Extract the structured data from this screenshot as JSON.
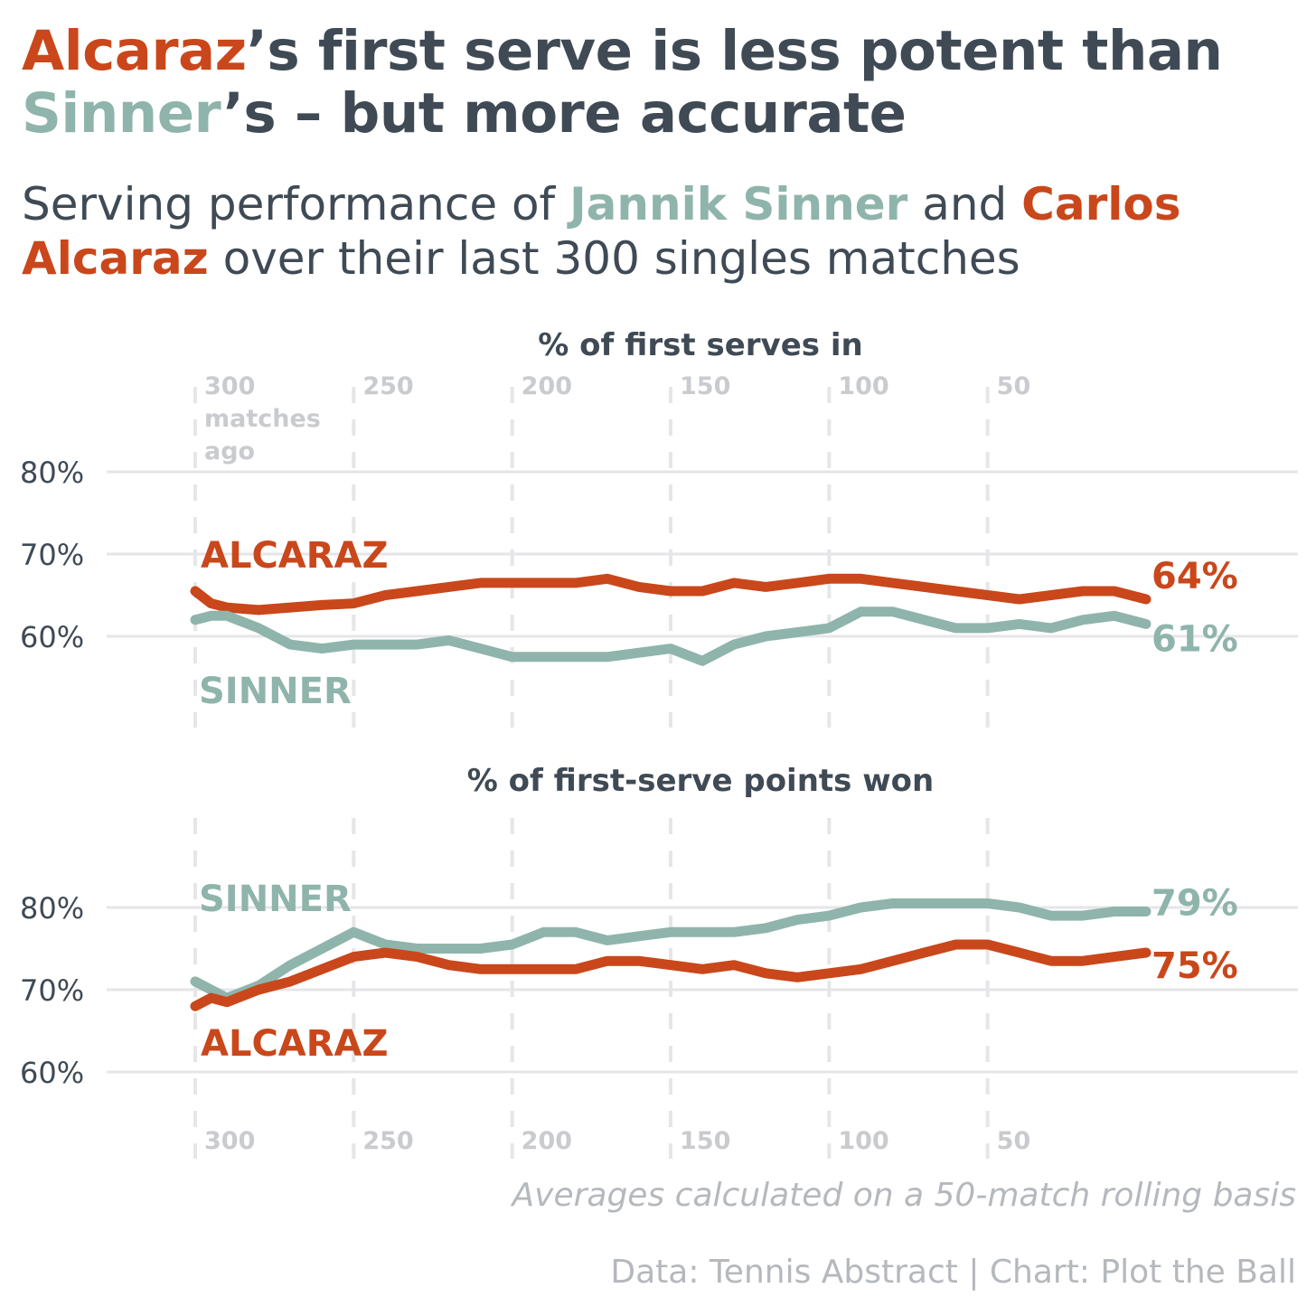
{
  "title": {
    "part1": "Alcaraz",
    "part2": "’s first serve is less potent than",
    "part3": "Sinner",
    "part4": "’s – but more accurate"
  },
  "subtitle": {
    "part1": "Serving performance of ",
    "part2": "Jannik Sinner",
    "part3": " and ",
    "part4": "Carlos Alcaraz",
    "part5": " over their last 300 singles matches"
  },
  "colors": {
    "alcaraz": "#c9471b",
    "sinner": "#8fb4ab",
    "text": "#3f4a55",
    "muted": "#b5b8bc",
    "grid": "#e6e6e8"
  },
  "x_ticks": [
    "300",
    "250",
    "200",
    "150",
    "100",
    "50"
  ],
  "x_first_tick_extra": [
    "matches",
    "ago"
  ],
  "note": "Averages calculated on a 50-match rolling basis",
  "source": "Data: Tennis Abstract | Chart: Plot the Ball",
  "chart_data": [
    {
      "type": "line",
      "title": "% of first serves in",
      "xlabel": "matches ago",
      "xlim": [
        300,
        0
      ],
      "ylim": [
        50,
        85
      ],
      "y_ticks": [
        "80%",
        "70%",
        "60%"
      ],
      "y_tick_values": [
        80,
        70,
        60
      ],
      "series": [
        {
          "name": "ALCARAZ",
          "color": "#c9471b",
          "end_label": "64%",
          "x": [
            300,
            295,
            290,
            280,
            270,
            260,
            250,
            240,
            230,
            220,
            210,
            200,
            190,
            180,
            170,
            160,
            150,
            140,
            130,
            120,
            110,
            100,
            90,
            80,
            70,
            60,
            50,
            40,
            30,
            20,
            10,
            0
          ],
          "y": [
            65.5,
            64,
            63.5,
            63.2,
            63.5,
            63.8,
            64,
            65,
            65.5,
            66,
            66.5,
            66.5,
            66.5,
            66.5,
            67,
            66,
            65.5,
            65.5,
            66.5,
            66,
            66.5,
            67,
            67,
            66.5,
            66,
            65.5,
            65,
            64.5,
            65,
            65.5,
            65.5,
            64.5
          ]
        },
        {
          "name": "SINNER",
          "color": "#8fb4ab",
          "end_label": "61%",
          "x": [
            300,
            295,
            290,
            280,
            270,
            260,
            250,
            240,
            230,
            220,
            210,
            200,
            190,
            180,
            170,
            160,
            150,
            140,
            130,
            120,
            110,
            100,
            90,
            80,
            70,
            60,
            50,
            40,
            30,
            20,
            10,
            0
          ],
          "y": [
            62,
            62.5,
            62.5,
            61,
            59,
            58.5,
            59,
            59,
            59,
            59.5,
            58.5,
            57.5,
            57.5,
            57.5,
            57.5,
            58,
            58.5,
            57,
            59,
            60,
            60.5,
            61,
            63,
            63,
            62,
            61,
            61,
            61.5,
            61,
            62,
            62.5,
            61.5
          ]
        }
      ]
    },
    {
      "type": "line",
      "title": "% of first-serve points won",
      "xlabel": "matches ago",
      "xlim": [
        300,
        0
      ],
      "ylim": [
        58,
        86
      ],
      "y_ticks": [
        "80%",
        "70%",
        "60%"
      ],
      "y_tick_values": [
        80,
        70,
        60
      ],
      "series": [
        {
          "name": "SINNER",
          "color": "#8fb4ab",
          "end_label": "79%",
          "x": [
            300,
            295,
            290,
            280,
            270,
            260,
            250,
            240,
            230,
            220,
            210,
            200,
            190,
            180,
            170,
            160,
            150,
            140,
            130,
            120,
            110,
            100,
            90,
            80,
            70,
            60,
            50,
            40,
            30,
            20,
            10,
            0
          ],
          "y": [
            71,
            70,
            69,
            70.5,
            73,
            75,
            77,
            75.5,
            75,
            75,
            75,
            75.5,
            77,
            77,
            76,
            76.5,
            77,
            77,
            77,
            77.5,
            78.5,
            79,
            80,
            80.5,
            80.5,
            80.5,
            80.5,
            80,
            79,
            79,
            79.5,
            79.5
          ]
        },
        {
          "name": "ALCARAZ",
          "color": "#c9471b",
          "end_label": "75%",
          "x": [
            300,
            295,
            290,
            280,
            270,
            260,
            250,
            240,
            230,
            220,
            210,
            200,
            190,
            180,
            170,
            160,
            150,
            140,
            130,
            120,
            110,
            100,
            90,
            80,
            70,
            60,
            50,
            40,
            30,
            20,
            10,
            0
          ],
          "y": [
            68,
            69,
            68.5,
            70,
            71,
            72.5,
            74,
            74.5,
            74,
            73,
            72.5,
            72.5,
            72.5,
            72.5,
            73.5,
            73.5,
            73,
            72.5,
            73,
            72,
            71.5,
            72,
            72.5,
            73.5,
            74.5,
            75.5,
            75.5,
            74.5,
            73.5,
            73.5,
            74,
            74.5
          ]
        }
      ]
    }
  ]
}
